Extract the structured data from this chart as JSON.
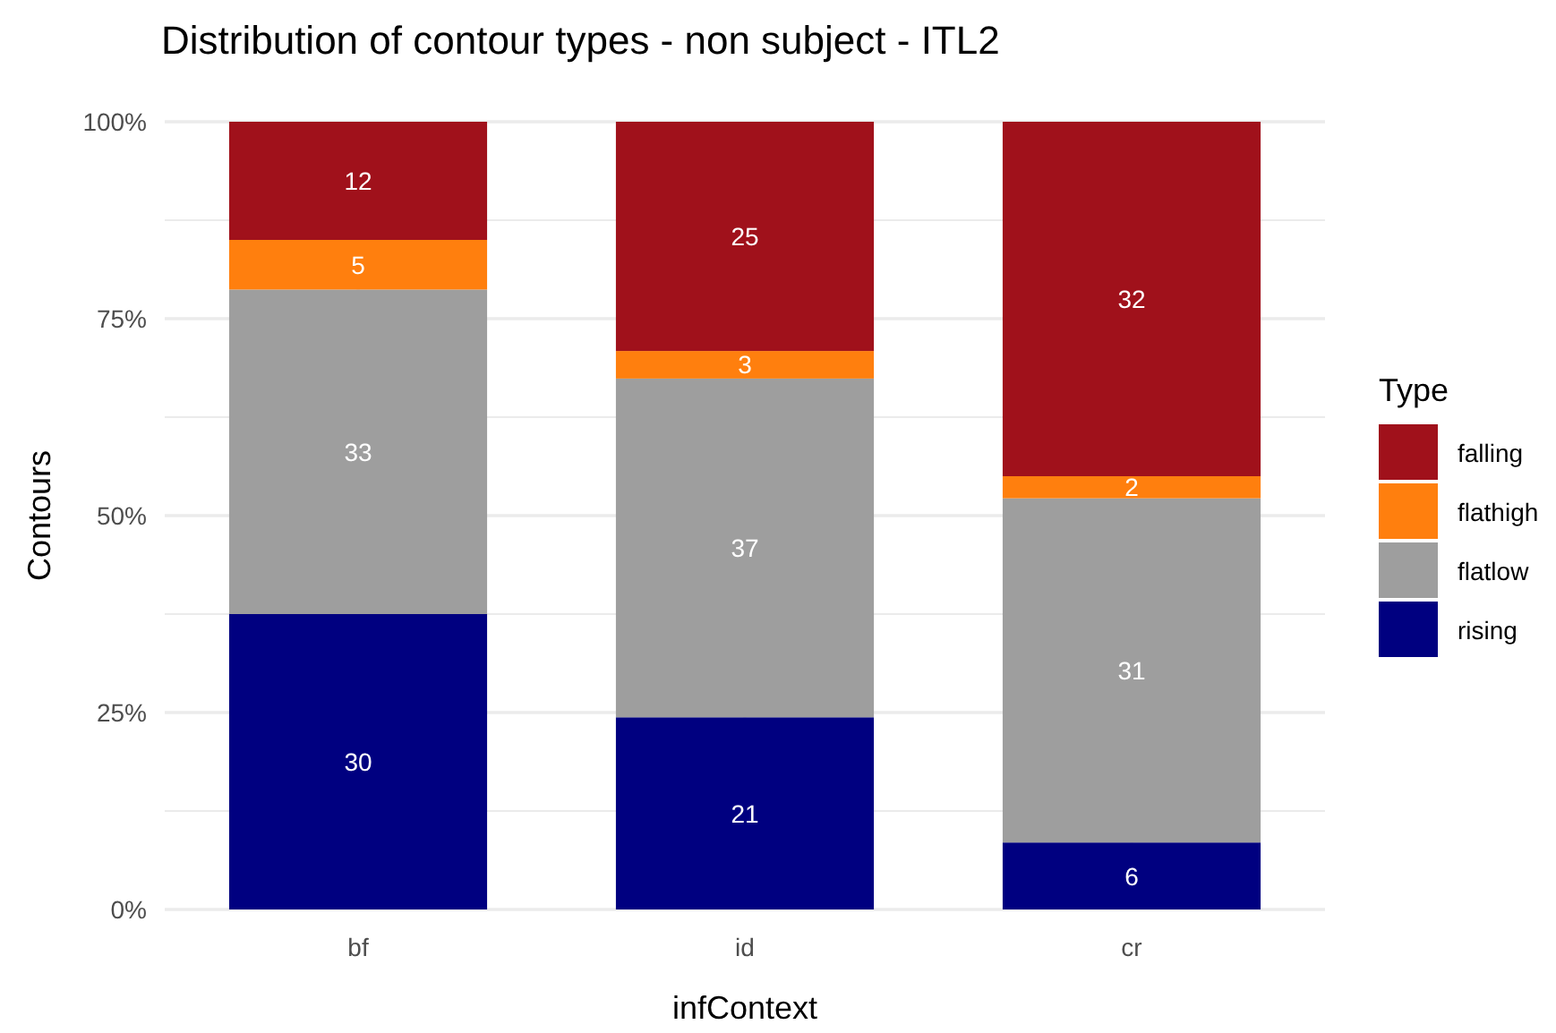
{
  "chart_data": {
    "type": "bar",
    "title": "Distribution of contour types - non subject - ITL2",
    "xlabel": "infContext",
    "ylabel": "Contours",
    "legend_title": "Type",
    "categories": [
      "bf",
      "id",
      "cr"
    ],
    "stacked": true,
    "ylim": [
      0,
      100
    ],
    "yticks": [
      {
        "value": 0,
        "label": "0%"
      },
      {
        "value": 12.5,
        "label": null
      },
      {
        "value": 25,
        "label": "25%"
      },
      {
        "value": 37.5,
        "label": null
      },
      {
        "value": 50,
        "label": "50%"
      },
      {
        "value": 62.5,
        "label": null
      },
      {
        "value": 75,
        "label": "75%"
      },
      {
        "value": 87.5,
        "label": null
      },
      {
        "value": 100,
        "label": "100%"
      }
    ],
    "grid": true,
    "legend": "right",
    "series": [
      {
        "name": "rising",
        "color": "#000080",
        "values": [
          37.5,
          24.4,
          8.5
        ]
      },
      {
        "name": "flatlow",
        "color": "#9e9e9e",
        "values": [
          41.2,
          43,
          43.7
        ]
      },
      {
        "name": "flathigh",
        "color": "#ff7f0e",
        "values": [
          6.3,
          3.5,
          2.8
        ]
      },
      {
        "name": "falling",
        "color": "#a0111b",
        "values": [
          15,
          29.1,
          45
        ]
      }
    ],
    "annotations": [
      "30",
      "33",
      "5",
      "12",
      "21",
      "37",
      "3",
      "25",
      "6",
      "31",
      "2",
      "32"
    ]
  }
}
